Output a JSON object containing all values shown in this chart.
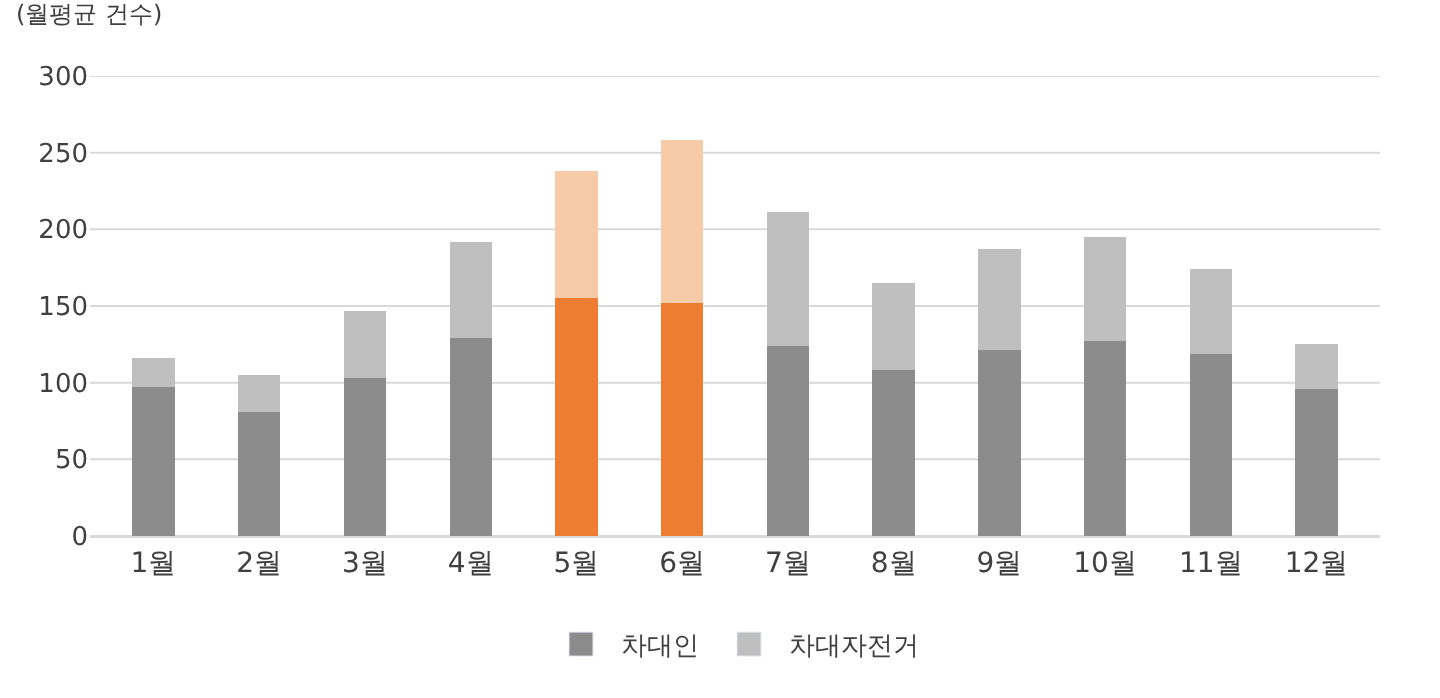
{
  "chart_data": {
    "type": "bar",
    "ylabel": "(월평균 건수)",
    "stacked": true,
    "categories": [
      "1월",
      "2월",
      "3월",
      "4월",
      "5월",
      "6월",
      "7월",
      "8월",
      "9월",
      "10월",
      "11월",
      "12월"
    ],
    "series": [
      {
        "name": "차대인",
        "color": "#8c8c8c",
        "colors": [
          "#8c8c8c",
          "#8c8c8c",
          "#8c8c8c",
          "#8c8c8c",
          "#ed7d31",
          "#ed7d31",
          "#8c8c8c",
          "#8c8c8c",
          "#8c8c8c",
          "#8c8c8c",
          "#8c8c8c",
          "#8c8c8c"
        ],
        "values": [
          97,
          81,
          103,
          129,
          155,
          152,
          124,
          108,
          121,
          127,
          119,
          96
        ]
      },
      {
        "name": "차대자전거",
        "color": "#bfbfbf",
        "colors": [
          "#bfbfbf",
          "#bfbfbf",
          "#bfbfbf",
          "#bfbfbf",
          "#f8cba8",
          "#f8cba8",
          "#bfbfbf",
          "#bfbfbf",
          "#bfbfbf",
          "#bfbfbf",
          "#bfbfbf",
          "#bfbfbf"
        ],
        "values": [
          19,
          24,
          44,
          63,
          83,
          106,
          87,
          57,
          66,
          68,
          55,
          29
        ]
      }
    ],
    "ylim": [
      0,
      300
    ],
    "yticks": [
      0,
      50,
      100,
      150,
      200,
      250,
      300
    ],
    "grid": "y",
    "legend": "bottom"
  }
}
